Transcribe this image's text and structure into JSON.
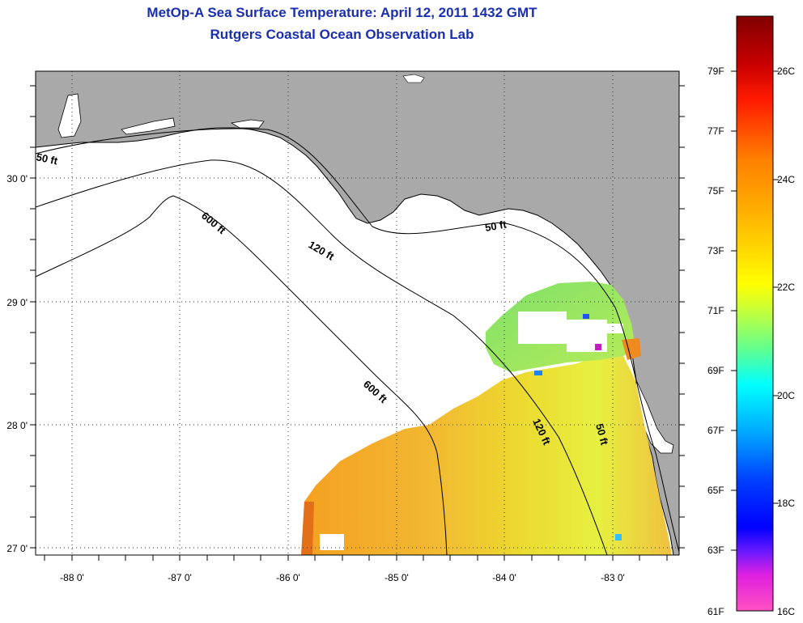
{
  "header": {
    "title": "MetOp-A Sea Surface Temperature:  April 12, 2011 1432 GMT",
    "subtitle": "Rutgers Coastal Ocean Observation Lab"
  },
  "map": {
    "region": "Florida Big Bend / NE Gulf of Mexico",
    "lon_range": [
      -88.3,
      -82.5
    ],
    "lat_range": [
      26.95,
      30.9
    ],
    "x_ticks": [
      "-88 0'",
      "-87 0'",
      "-86 0'",
      "-85 0'",
      "-84 0'",
      "-83 0'"
    ],
    "y_ticks": [
      "27 0'",
      "28 0'",
      "29 0'",
      "30 0'"
    ],
    "grid": "dotted",
    "colors": {
      "land": "#a9a9a9",
      "water_no_data": "#ffffff",
      "coastline": "#000000",
      "frame": "#000000"
    },
    "contours": [
      {
        "label": "50 ft",
        "annotation": "50 ft"
      },
      {
        "label": "50 ft (east)",
        "annotation": "50 ft"
      },
      {
        "label": "50 ft (keys)",
        "annotation": "50 ft"
      },
      {
        "label": "120 ft",
        "annotation": "120 ft"
      },
      {
        "label": "120 ft (south)",
        "annotation": "120 ft"
      },
      {
        "label": "600 ft",
        "annotation": "600 ft"
      },
      {
        "label": "600 ft (south)",
        "annotation": "600 ft"
      }
    ]
  },
  "colorbar": {
    "colors_top_to_bottom": [
      "#800000",
      "#ff0000",
      "#ff7f00",
      "#ffd400",
      "#ffff00",
      "#7fff7f",
      "#00ffff",
      "#007fff",
      "#0000ff",
      "#8000ff",
      "#ff00ff",
      "#ff40c0"
    ],
    "fahrenheit_labels": [
      "79F",
      "77F",
      "75F",
      "73F",
      "71F",
      "69F",
      "67F",
      "65F",
      "63F",
      "61F"
    ],
    "celsius_labels": [
      "26C",
      "24C",
      "22C",
      "20C",
      "18C",
      "16C"
    ]
  }
}
